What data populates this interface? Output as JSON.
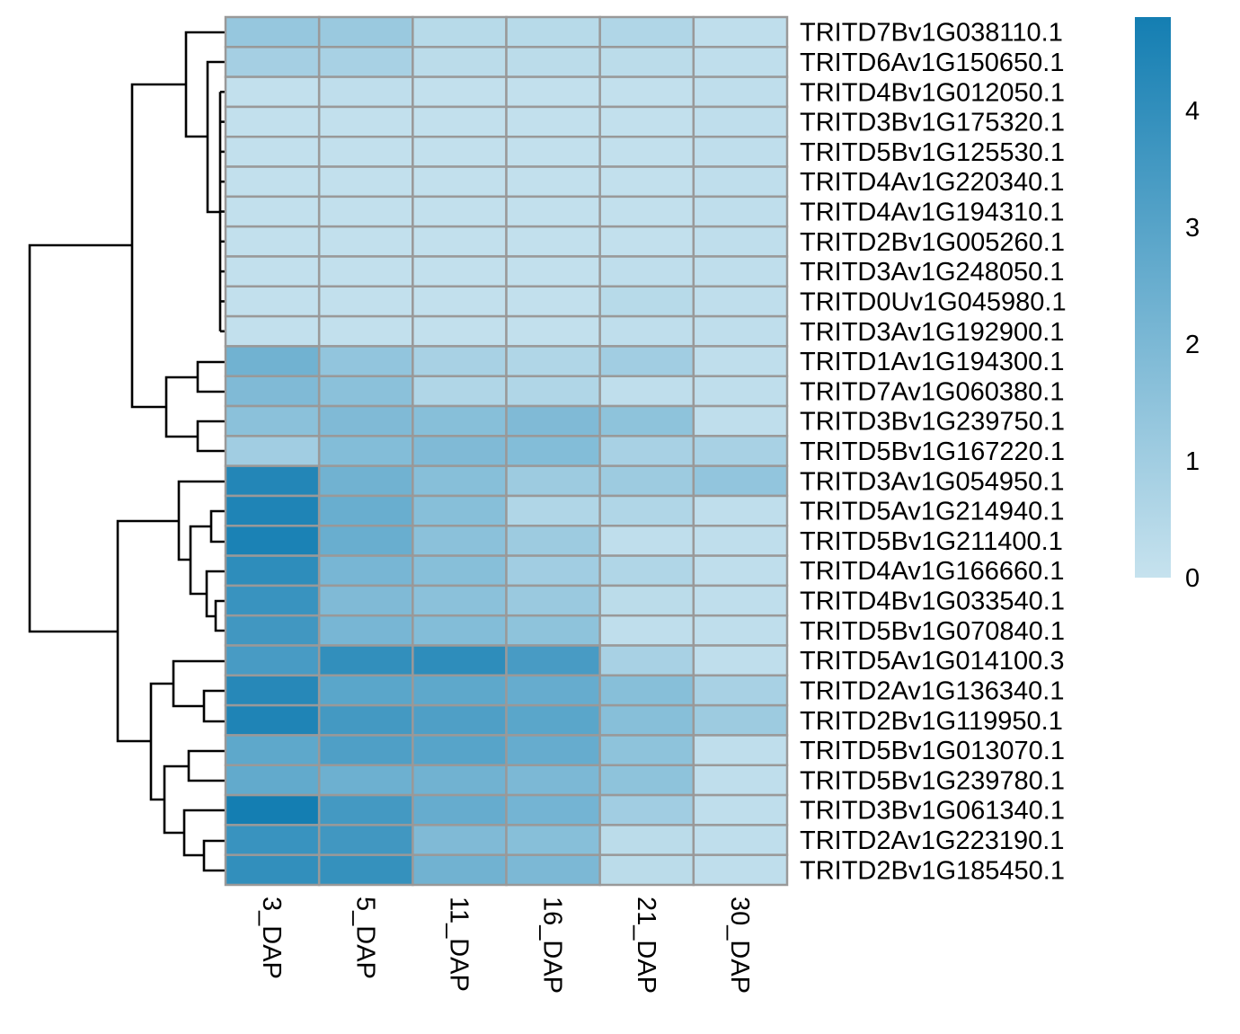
{
  "chart_data": {
    "type": "heatmap",
    "title": "",
    "columns": [
      "3_DAP",
      "5_DAP",
      "11_DAP",
      "16_DAP",
      "21_DAP",
      "30_DAP"
    ],
    "rows": [
      "TRITD7Bv1G038110.1",
      "TRITD6Av1G150650.1",
      "TRITD4Bv1G012050.1",
      "TRITD3Bv1G175320.1",
      "TRITD5Bv1G125530.1",
      "TRITD4Av1G220340.1",
      "TRITD4Av1G194310.1",
      "TRITD2Bv1G005260.1",
      "TRITD3Av1G248050.1",
      "TRITD0Uv1G045980.1",
      "TRITD3Av1G192900.1",
      "TRITD1Av1G194300.1",
      "TRITD7Av1G060380.1",
      "TRITD3Bv1G239750.1",
      "TRITD5Bv1G167220.1",
      "TRITD3Av1G054950.1",
      "TRITD5Av1G214940.1",
      "TRITD5Bv1G211400.1",
      "TRITD4Av1G166660.1",
      "TRITD4Bv1G033540.1",
      "TRITD5Bv1G070840.1",
      "TRITD5Av1G014100.3",
      "TRITD2Av1G136340.1",
      "TRITD2Bv1G119950.1",
      "TRITD5Bv1G013070.1",
      "TRITD5Bv1G239780.1",
      "TRITD3Bv1G061340.1",
      "TRITD2Av1G223190.1",
      "TRITD2Bv1G185450.1"
    ],
    "values": [
      [
        1.3,
        1.2,
        0.4,
        0.4,
        0.6,
        0.2
      ],
      [
        0.9,
        0.8,
        0.3,
        0.3,
        0.3,
        0.2
      ],
      [
        0.1,
        0.2,
        0.1,
        0.1,
        0.1,
        0.2
      ],
      [
        0.1,
        0.1,
        0.1,
        0.1,
        0.1,
        0.2
      ],
      [
        0.1,
        0.1,
        0.1,
        0.1,
        0.1,
        0.2
      ],
      [
        0.1,
        0.1,
        0.1,
        0.1,
        0.1,
        0.2
      ],
      [
        0.1,
        0.1,
        0.1,
        0.1,
        0.1,
        0.2
      ],
      [
        0.1,
        0.1,
        0.1,
        0.1,
        0.1,
        0.2
      ],
      [
        0.1,
        0.1,
        0.1,
        0.1,
        0.2,
        0.2
      ],
      [
        0.1,
        0.1,
        0.1,
        0.1,
        0.4,
        0.2
      ],
      [
        0.1,
        0.1,
        0.1,
        0.1,
        0.2,
        0.2
      ],
      [
        2.3,
        1.4,
        0.8,
        0.6,
        1.0,
        0.2
      ],
      [
        1.9,
        1.6,
        0.6,
        0.6,
        0.2,
        0.2
      ],
      [
        1.6,
        1.9,
        1.7,
        1.9,
        1.5,
        0.2
      ],
      [
        1.0,
        1.8,
        1.9,
        1.8,
        0.8,
        0.8
      ],
      [
        4.4,
        2.3,
        1.7,
        1.1,
        1.1,
        1.4
      ],
      [
        4.5,
        2.5,
        1.7,
        0.6,
        0.6,
        0.2
      ],
      [
        4.6,
        2.5,
        1.6,
        1.1,
        0.2,
        0.2
      ],
      [
        4.1,
        2.1,
        1.7,
        1.0,
        0.6,
        0.2
      ],
      [
        3.8,
        1.9,
        1.6,
        1.2,
        0.3,
        0.2
      ],
      [
        3.6,
        2.1,
        1.8,
        1.5,
        0.2,
        0.2
      ],
      [
        3.4,
        4.0,
        4.1,
        3.4,
        0.8,
        0.2
      ],
      [
        4.3,
        2.9,
        2.8,
        2.6,
        1.7,
        0.8
      ],
      [
        4.5,
        3.5,
        3.2,
        2.9,
        1.7,
        1.1
      ],
      [
        2.8,
        3.2,
        3.0,
        2.6,
        1.5,
        0.2
      ],
      [
        2.7,
        2.4,
        2.3,
        2.0,
        1.5,
        0.2
      ],
      [
        4.8,
        3.5,
        2.6,
        2.2,
        1.0,
        0.2
      ],
      [
        3.8,
        3.6,
        1.9,
        1.7,
        0.3,
        0.2
      ],
      [
        4.0,
        3.9,
        2.3,
        2.0,
        0.3,
        0.2
      ]
    ],
    "colorbar": {
      "ticks": [
        "0",
        "1",
        "2",
        "3",
        "4"
      ],
      "range": [
        0,
        4.8
      ],
      "low_color": "#c6e2ee",
      "high_color": "#147eb2"
    },
    "cluster_rows": true,
    "border_color": "#999999"
  }
}
